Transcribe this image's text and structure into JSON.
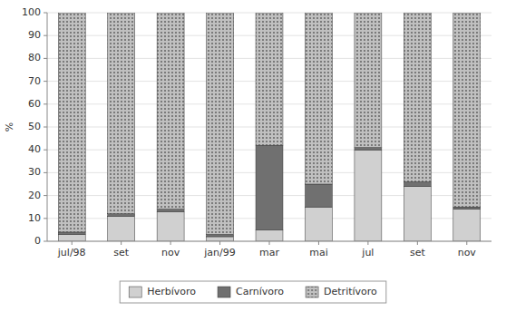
{
  "chart_data": {
    "type": "bar",
    "stacked": true,
    "categories": [
      "jul/98",
      "set",
      "nov",
      "jan/99",
      "mar",
      "mai",
      "jul",
      "set",
      "nov"
    ],
    "series": [
      {
        "name": "Herbívoro",
        "color": "#d0d0d0",
        "values": [
          3,
          11,
          13,
          2,
          5,
          15,
          40,
          24,
          14
        ]
      },
      {
        "name": "Carnívoro",
        "color": "#707070",
        "values": [
          1,
          1,
          1,
          1,
          37,
          10,
          1,
          2,
          1
        ]
      },
      {
        "name": "Detritívoro",
        "color": "#c0c0c0",
        "values": [
          96,
          88,
          86,
          97,
          58,
          75,
          59,
          74,
          85
        ]
      }
    ],
    "ylabel": "%",
    "ylim": [
      0,
      100
    ],
    "yticks": [
      0,
      10,
      20,
      30,
      40,
      50,
      60,
      70,
      80,
      90,
      100
    ],
    "grid": true,
    "legend": "bottom"
  }
}
